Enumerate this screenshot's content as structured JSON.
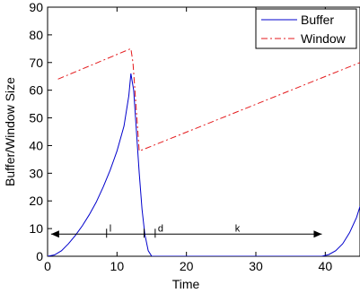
{
  "chart_data": {
    "type": "line",
    "title": "",
    "xlabel": "Time",
    "ylabel": "Buffer/Window Size",
    "xlim": [
      0,
      45
    ],
    "ylim": [
      0,
      90
    ],
    "x_ticks": [
      0,
      10,
      20,
      30,
      40
    ],
    "y_ticks": [
      0,
      10,
      20,
      30,
      40,
      50,
      60,
      70,
      80,
      90
    ],
    "grid": false,
    "legend_position": "top-right",
    "series": [
      {
        "name": "Buffer",
        "color": "#0000cc",
        "style": "solid",
        "points": [
          [
            0,
            0
          ],
          [
            1,
            0.5
          ],
          [
            2,
            2
          ],
          [
            3,
            4.5
          ],
          [
            4,
            7.5
          ],
          [
            5,
            11
          ],
          [
            6,
            15
          ],
          [
            7,
            19.5
          ],
          [
            8,
            25
          ],
          [
            9,
            31
          ],
          [
            10,
            38
          ],
          [
            11,
            47
          ],
          [
            11.7,
            58
          ],
          [
            12,
            66
          ],
          [
            12.4,
            60
          ],
          [
            12.8,
            45
          ],
          [
            13.2,
            30
          ],
          [
            13.6,
            17
          ],
          [
            14,
            8
          ],
          [
            14.5,
            2
          ],
          [
            15,
            0
          ],
          [
            20,
            0
          ],
          [
            25,
            0
          ],
          [
            30,
            0
          ],
          [
            35,
            0
          ],
          [
            38,
            0
          ],
          [
            39.5,
            0
          ],
          [
            40.5,
            0.6
          ],
          [
            41.5,
            2
          ],
          [
            42.5,
            4.5
          ],
          [
            43.5,
            8.5
          ],
          [
            44.5,
            14
          ],
          [
            45,
            18
          ]
        ]
      },
      {
        "name": "Window",
        "color": "#e41a1c",
        "style": "dash-dot",
        "points": [
          [
            1.5,
            64
          ],
          [
            12,
            75
          ],
          [
            12.3,
            70
          ],
          [
            13.2,
            38
          ],
          [
            45,
            70
          ]
        ]
      }
    ],
    "annotations": [
      {
        "type": "double-arrow",
        "x_start": 0.5,
        "x_end": 39.5,
        "y": 8
      },
      {
        "type": "marker",
        "x": 8.5,
        "y": 8,
        "label": "l"
      },
      {
        "type": "marker",
        "x": 13.9,
        "y": 8,
        "label": ""
      },
      {
        "type": "marker",
        "x": 15.5,
        "y": 8,
        "label": "d"
      },
      {
        "type": "label",
        "x": 27,
        "y": 8,
        "text": "k"
      }
    ]
  }
}
